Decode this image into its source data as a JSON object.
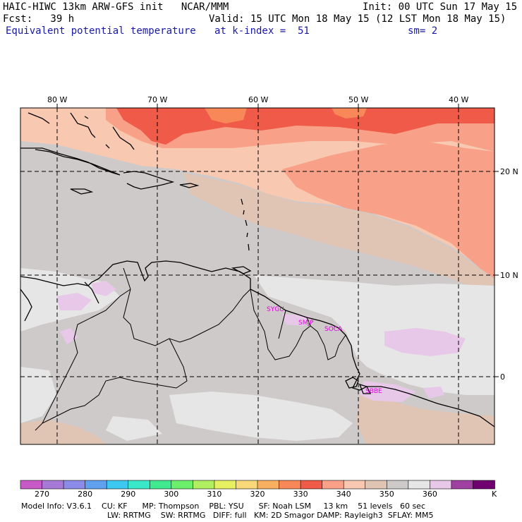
{
  "header": {
    "model_title": "HAIC-HIWC 13km ARW-GFS init   NCAR/MMM",
    "init_time": "Init: 00 UTC Sun 17 May 15",
    "forecast_hour": "Fcst:   39 h",
    "valid_time": "Valid: 15 UTC Mon 18 May 15 (12 LST Mon 18 May 15)",
    "field_name": "Equivalent potential temperature",
    "level": "at k-index =  51",
    "smoothing": "sm= 2"
  },
  "map": {
    "longitude_labels": [
      "80 W",
      "70 W",
      "60 W",
      "50 W",
      "40 W"
    ],
    "latitude_labels": [
      "20 N",
      "10 N",
      "0"
    ],
    "stations": [
      "SYGU",
      "SMJP",
      "SOCA",
      "SBBE"
    ]
  },
  "colorbar": {
    "colors": [
      "#c85ac8",
      "#a87ad8",
      "#8c8ce8",
      "#5fa0ef",
      "#3cc8f0",
      "#38e8c8",
      "#40e890",
      "#6cf06c",
      "#b0f060",
      "#e6f060",
      "#f8d878",
      "#f8b060",
      "#f88858",
      "#f05a48",
      "#f8a088",
      "#f8c8b0",
      "#e0c4b4",
      "#cfcaca",
      "#e6e6e6",
      "#e8c8e8",
      "#a040a0",
      "#700070"
    ],
    "tick_labels": [
      "270",
      "280",
      "290",
      "300",
      "310",
      "320",
      "330",
      "340",
      "350",
      "360"
    ],
    "unit": "K"
  },
  "footer": {
    "line1": "Model Info: V3.6.1    CU: KF      MP: Thompson    PBL: YSU      SF: Noah LSM     13 km    51 levels   60 sec",
    "line2": "LW: RRTMG    SW: RRTMG   DIFF: full   KM: 2D Smagor DAMP: Rayleigh3  SFLAY: MM5"
  }
}
